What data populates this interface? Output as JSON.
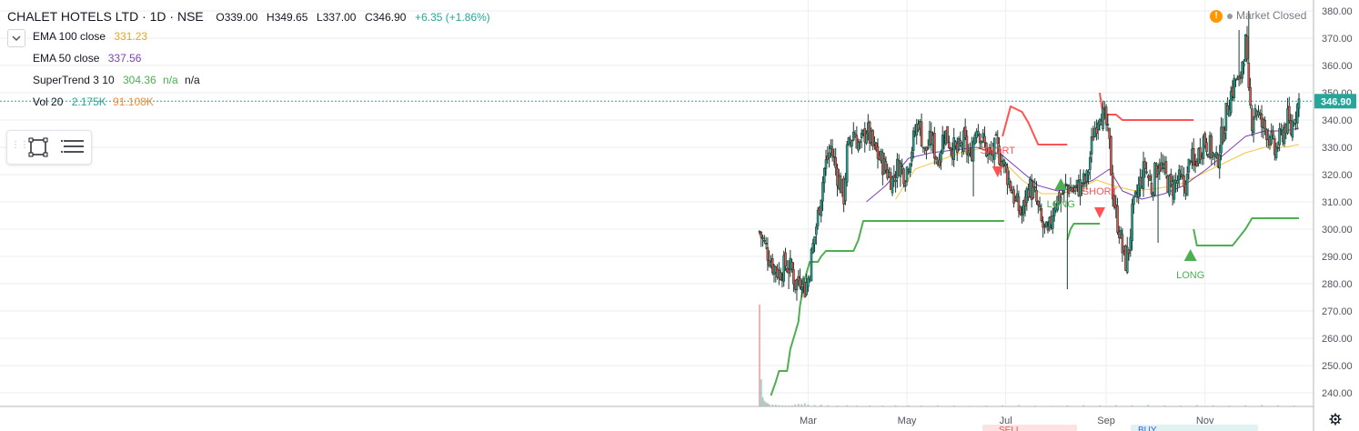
{
  "header": {
    "symbol": "CHALET HOTELS LTD · 1D · NSE",
    "open": "O339.00",
    "high": "H349.65",
    "low": "L337.00",
    "close": "C346.90",
    "change": "+6.35 (+1.86%)"
  },
  "market_status": "Market Closed",
  "indicators": {
    "ema100": {
      "label": "EMA 100 close",
      "value": "331.23"
    },
    "ema50": {
      "label": "EMA 50 close",
      "value": "337.56"
    },
    "supertrend": {
      "label": "SuperTrend 3 10",
      "value": "304.36",
      "v2": "n/a",
      "v3": "n/a"
    },
    "vol": {
      "label": "Vol 20",
      "value": "2.175K",
      "value2": "91.108K"
    }
  },
  "colors": {
    "up": "#26a69a",
    "down": "#ef5350",
    "ema100": "#f5c542",
    "ema50": "#7b3fb5",
    "supertrend_up": "#4caf50",
    "supertrend_down": "#ff5252",
    "grid": "#eceef2",
    "axis_text": "#50535e",
    "price_line": "#26a69a"
  },
  "icons": {
    "collapse": "chevron-down-icon",
    "rect_tool": "rectangle-icon",
    "list_tool": "menu-lines-icon",
    "settings": "gear-icon",
    "warning": "warning-icon"
  },
  "chart_data": {
    "type": "candlestick",
    "y_ticks": [
      240,
      250,
      260,
      270,
      280,
      290,
      300,
      310,
      320,
      330,
      340,
      350,
      360,
      370,
      380
    ],
    "ylim": [
      235,
      384
    ],
    "x_ticks": [
      {
        "label": "Mar",
        "day": 30
      },
      {
        "label": "May",
        "day": 91
      },
      {
        "label": "Jul",
        "day": 152
      },
      {
        "label": "Sep",
        "day": 214
      },
      {
        "label": "Nov",
        "day": 275
      }
    ],
    "xlim": [
      -1,
      336
    ],
    "last_price": "346.90",
    "last_price_value": 346.9,
    "path": [
      [
        0,
        299
      ],
      [
        4,
        293
      ],
      [
        8,
        287
      ],
      [
        12,
        284
      ],
      [
        16,
        287
      ],
      [
        20,
        285
      ],
      [
        22,
        280
      ],
      [
        26,
        283
      ],
      [
        28,
        278
      ],
      [
        30,
        282
      ],
      [
        32,
        290
      ],
      [
        36,
        305
      ],
      [
        40,
        322
      ],
      [
        44,
        330
      ],
      [
        48,
        320
      ],
      [
        52,
        312
      ],
      [
        54,
        328
      ],
      [
        58,
        336
      ],
      [
        62,
        330
      ],
      [
        66,
        337
      ],
      [
        70,
        330
      ],
      [
        74,
        326
      ],
      [
        78,
        322
      ],
      [
        82,
        318
      ],
      [
        86,
        324
      ],
      [
        90,
        320
      ],
      [
        94,
        330
      ],
      [
        98,
        340
      ],
      [
        102,
        328
      ],
      [
        106,
        333
      ],
      [
        110,
        325
      ],
      [
        114,
        336
      ],
      [
        118,
        331
      ],
      [
        122,
        328
      ],
      [
        126,
        332
      ],
      [
        130,
        326
      ],
      [
        134,
        339
      ],
      [
        138,
        332
      ],
      [
        142,
        326
      ],
      [
        146,
        330
      ],
      [
        150,
        325
      ],
      [
        154,
        318
      ],
      [
        158,
        310
      ],
      [
        162,
        305
      ],
      [
        166,
        316
      ],
      [
        170,
        312
      ],
      [
        174,
        302
      ],
      [
        178,
        297
      ],
      [
        182,
        310
      ],
      [
        186,
        312
      ],
      [
        190,
        316
      ],
      [
        194,
        314
      ],
      [
        198,
        316
      ],
      [
        202,
        318
      ],
      [
        206,
        335
      ],
      [
        210,
        344
      ],
      [
        214,
        338
      ],
      [
        216,
        330
      ],
      [
        218,
        314
      ],
      [
        220,
        305
      ],
      [
        222,
        300
      ],
      [
        224,
        292
      ],
      [
        226,
        288
      ],
      [
        228,
        293
      ],
      [
        230,
        305
      ],
      [
        234,
        315
      ],
      [
        238,
        323
      ],
      [
        242,
        315
      ],
      [
        246,
        325
      ],
      [
        250,
        320
      ],
      [
        254,
        315
      ],
      [
        258,
        318
      ],
      [
        262,
        316
      ],
      [
        264,
        318
      ],
      [
        266,
        328
      ],
      [
        268,
        322
      ],
      [
        270,
        326
      ],
      [
        274,
        333
      ],
      [
        278,
        330
      ],
      [
        282,
        324
      ],
      [
        286,
        336
      ],
      [
        290,
        348
      ],
      [
        294,
        355
      ],
      [
        296,
        352
      ],
      [
        298,
        362
      ],
      [
        300,
        368
      ],
      [
        302,
        348
      ],
      [
        304,
        340
      ],
      [
        306,
        345
      ],
      [
        310,
        338
      ],
      [
        314,
        336
      ],
      [
        318,
        328
      ],
      [
        322,
        334
      ],
      [
        326,
        340
      ],
      [
        328,
        336
      ],
      [
        330,
        342
      ],
      [
        333,
        347
      ]
    ],
    "wick_events": [
      [
        18,
        278
      ],
      [
        132,
        312
      ],
      [
        190,
        278
      ],
      [
        246,
        295
      ],
      [
        296,
        373
      ],
      [
        302,
        380
      ]
    ],
    "ema100": [
      [
        84,
        311
      ],
      [
        96,
        322
      ],
      [
        110,
        325
      ],
      [
        124,
        328
      ],
      [
        140,
        330
      ],
      [
        152,
        324
      ],
      [
        162,
        318
      ],
      [
        174,
        313
      ],
      [
        186,
        313
      ],
      [
        198,
        315
      ],
      [
        208,
        318
      ],
      [
        218,
        316
      ],
      [
        232,
        314
      ],
      [
        246,
        315
      ],
      [
        258,
        316
      ],
      [
        272,
        320
      ],
      [
        286,
        324
      ],
      [
        300,
        328
      ],
      [
        312,
        330
      ],
      [
        324,
        330
      ],
      [
        333,
        331
      ]
    ],
    "ema50": [
      [
        66,
        310
      ],
      [
        78,
        316
      ],
      [
        92,
        326
      ],
      [
        106,
        328
      ],
      [
        120,
        329
      ],
      [
        134,
        330
      ],
      [
        150,
        327
      ],
      [
        160,
        322
      ],
      [
        172,
        316
      ],
      [
        184,
        314
      ],
      [
        194,
        315
      ],
      [
        206,
        318
      ],
      [
        216,
        322
      ],
      [
        224,
        314
      ],
      [
        236,
        311
      ],
      [
        250,
        313
      ],
      [
        262,
        316
      ],
      [
        276,
        322
      ],
      [
        288,
        328
      ],
      [
        300,
        334
      ],
      [
        312,
        336
      ],
      [
        324,
        336
      ],
      [
        333,
        337
      ]
    ],
    "supertrend_long": [
      [
        7,
        239
      ],
      [
        10,
        244
      ],
      [
        12,
        248
      ],
      [
        17,
        248
      ],
      [
        19,
        256
      ],
      [
        22,
        262
      ],
      [
        24,
        266
      ],
      [
        25,
        272
      ],
      [
        28,
        282
      ],
      [
        31,
        288
      ],
      [
        36,
        288
      ],
      [
        38,
        290
      ],
      [
        41,
        292
      ],
      [
        44,
        292
      ],
      [
        48,
        292
      ],
      [
        58,
        292
      ],
      [
        61,
        296
      ],
      [
        64,
        303
      ],
      [
        82,
        303
      ],
      [
        151,
        303
      ]
    ],
    "supertrend_short": [
      [
        150,
        334
      ],
      [
        155,
        345
      ],
      [
        162,
        343
      ],
      [
        166,
        339
      ],
      [
        172,
        331
      ],
      [
        190,
        331
      ]
    ],
    "supertrend_long2": [
      [
        190,
        296
      ],
      [
        192,
        300
      ],
      [
        194,
        302
      ],
      [
        210,
        302
      ]
    ],
    "supertrend_short2": [
      [
        210,
        350
      ],
      [
        212,
        342
      ],
      [
        220,
        342
      ],
      [
        224,
        340
      ],
      [
        232,
        340
      ],
      [
        260,
        340
      ],
      [
        268,
        340
      ]
    ],
    "supertrend_long3": [
      [
        268,
        300
      ],
      [
        270,
        294
      ],
      [
        280,
        294
      ],
      [
        292,
        294
      ],
      [
        300,
        300
      ],
      [
        304,
        304
      ],
      [
        333,
        304
      ]
    ],
    "signals": [
      {
        "type": "short",
        "label": "SHORT",
        "day": 147,
        "price": 321
      },
      {
        "type": "long",
        "label": "LONG",
        "day": 186,
        "price": 317
      },
      {
        "type": "short",
        "label": "SHORT",
        "day": 210,
        "price": 306
      },
      {
        "type": "long",
        "label": "LONG",
        "day": 266,
        "price": 291
      }
    ],
    "volumes_k": [
      [
        0,
        450
      ],
      [
        1,
        120
      ],
      [
        2,
        40
      ],
      [
        3,
        25
      ],
      [
        4,
        18
      ],
      [
        5,
        14
      ],
      [
        6,
        10
      ],
      [
        8,
        9
      ],
      [
        10,
        8
      ],
      [
        12,
        6
      ],
      [
        14,
        5
      ],
      [
        16,
        4
      ],
      [
        18,
        4
      ],
      [
        20,
        5
      ],
      [
        22,
        9
      ],
      [
        24,
        12
      ],
      [
        26,
        10
      ],
      [
        28,
        14
      ],
      [
        30,
        8
      ],
      [
        34,
        6
      ],
      [
        38,
        8
      ],
      [
        42,
        5
      ],
      [
        48,
        4
      ],
      [
        54,
        5
      ],
      [
        60,
        4
      ],
      [
        68,
        4
      ],
      [
        76,
        4
      ],
      [
        84,
        5
      ],
      [
        92,
        5
      ],
      [
        100,
        4
      ],
      [
        110,
        5
      ],
      [
        120,
        4
      ],
      [
        130,
        3
      ],
      [
        140,
        4
      ],
      [
        150,
        5
      ],
      [
        160,
        6
      ],
      [
        170,
        4
      ],
      [
        180,
        3
      ],
      [
        190,
        5
      ],
      [
        200,
        6
      ],
      [
        210,
        5
      ],
      [
        220,
        6
      ],
      [
        230,
        5
      ],
      [
        240,
        7
      ],
      [
        250,
        5
      ],
      [
        260,
        4
      ],
      [
        270,
        6
      ],
      [
        280,
        5
      ],
      [
        290,
        4
      ],
      [
        300,
        5
      ],
      [
        310,
        6
      ],
      [
        320,
        5
      ],
      [
        330,
        4
      ]
    ],
    "bottom_labels": [
      "SELL",
      "BUY"
    ]
  }
}
